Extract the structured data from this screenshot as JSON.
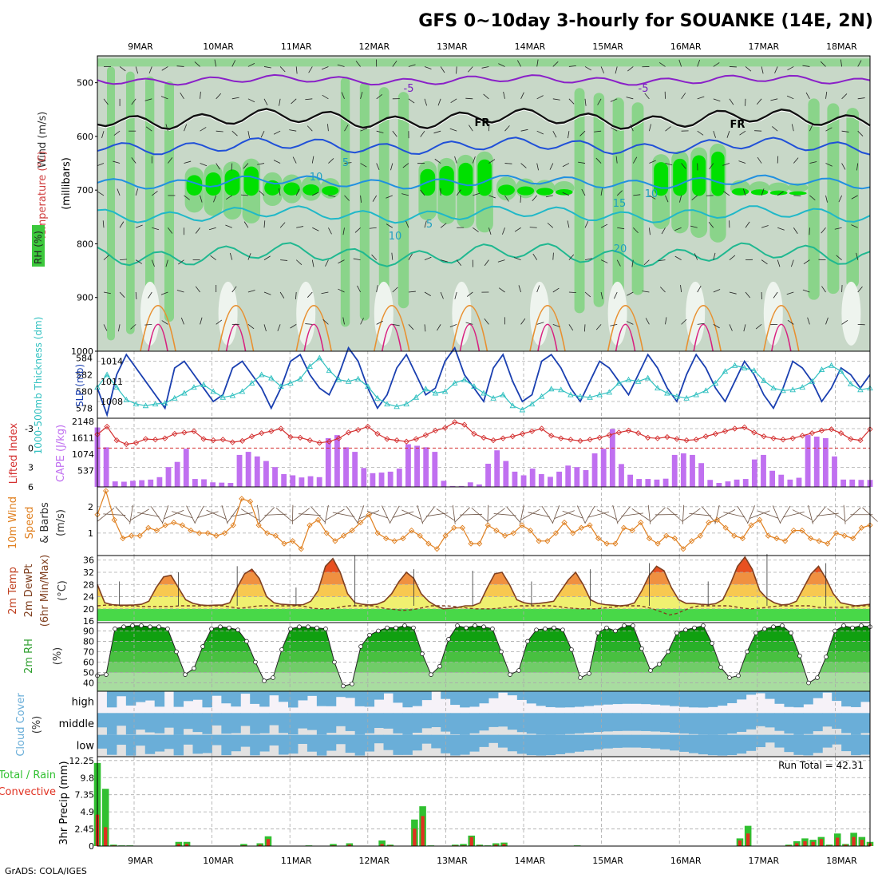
{
  "title": "GFS 0~10day 3-hourly for SOUANKE (14E, 2N)",
  "footer": "GrADS: COLA/IGES",
  "colors": {
    "grid": "#aaaaaa",
    "rh_light": "#c8d8c8",
    "rh_mid": "#7fd47f",
    "rh_high": "#3cc83c",
    "rh_sat": "#00e000",
    "slp": "#1a3fb0",
    "thickness": "#30c0c0",
    "lifted": "#d43030",
    "cape": "#c070f0",
    "wind10": "#e08020",
    "temp_outline": "#804020",
    "precip_total": "#30c030",
    "precip_conv": "#e03020",
    "cloud": "#6aaed8"
  },
  "chart_data": {
    "type": "meteogram",
    "x": {
      "labels": [
        "9MAR",
        "10MAR",
        "11MAR",
        "12MAR",
        "13MAR",
        "14MAR",
        "15MAR",
        "16MAR",
        "17MAR",
        "18MAR"
      ],
      "steps_per_day": 8,
      "n_steps": 81
    },
    "panels": [
      {
        "id": "upper_air",
        "legend": [
          "RH (%)",
          "Temperature (°C)",
          "Wind (m/s)"
        ],
        "ylabel": "(millibars)",
        "yticks": [
          "500",
          "600",
          "700",
          "800",
          "900",
          "1000"
        ],
        "ylim": [
          450,
          1000
        ],
        "contour_labels": [
          "-5",
          "-5",
          "FR",
          "FR",
          "5",
          "10",
          "15",
          "10",
          "5",
          "20",
          "10"
        ]
      },
      {
        "id": "slp_thickness",
        "left_label": "1000-500mb Thickness (dm)",
        "right_label": "SLP (mb)",
        "left_ticks": [
          "584",
          "582",
          "580",
          "578"
        ],
        "right_ticks": [
          "1014",
          "1011",
          "1008"
        ],
        "slp": [
          1010,
          1006,
          1012,
          1015,
          1013,
          1011,
          1009,
          1007,
          1013,
          1014,
          1012,
          1010,
          1008,
          1009,
          1013,
          1014,
          1012,
          1010,
          1007,
          1010,
          1014,
          1015,
          1012,
          1010,
          1009,
          1012,
          1016,
          1014,
          1010,
          1007,
          1009,
          1013,
          1015,
          1012,
          1009,
          1010,
          1014,
          1016,
          1012,
          1010,
          1008,
          1013,
          1015,
          1011,
          1008,
          1009,
          1014,
          1015,
          1013,
          1010,
          1008,
          1011,
          1014,
          1013,
          1011,
          1009,
          1012,
          1015,
          1013,
          1010,
          1008,
          1012,
          1015,
          1013,
          1010,
          1008,
          1011,
          1014,
          1012,
          1009,
          1007,
          1010,
          1014,
          1013,
          1011,
          1008,
          1010,
          1013,
          1012,
          1010,
          1012
        ],
        "thickness": [
          580.5,
          582,
          580.5,
          579,
          578.5,
          578.3,
          578.5,
          578.6,
          579.2,
          579.8,
          580.5,
          580.8,
          580,
          579.3,
          579.5,
          580,
          581,
          582,
          581.6,
          580.6,
          581,
          581.5,
          583,
          584,
          582.5,
          581.4,
          581.2,
          581.5,
          580.6,
          579.2,
          578.5,
          578.2,
          578.5,
          579.3,
          580.3,
          579.8,
          580,
          581,
          581.4,
          580.6,
          579.8,
          579.2,
          579.6,
          578.3,
          577.8,
          578.5,
          579.4,
          580.3,
          580.2,
          579.6,
          579.4,
          579.3,
          579.6,
          579.9,
          581,
          581.4,
          581.2,
          581.6,
          580.4,
          579.8,
          579.4,
          579.2,
          579.6,
          580.1,
          581,
          582.4,
          583.1,
          582.8,
          582.5,
          581.3,
          580.4,
          580.1,
          580.2,
          580.5,
          581.2,
          582.6,
          583.1,
          582.4,
          580.9,
          580.2,
          580.4
        ]
      },
      {
        "id": "lifted_cape",
        "left_label": "Lifted Index",
        "right_label": "CAPE (J/kg)",
        "left_ticks": [
          "-3",
          "0",
          "3",
          "6"
        ],
        "right_ticks": [
          "2148",
          "1611",
          "1074",
          "537"
        ],
        "lifted": [
          -2.1,
          -3.3,
          -1.2,
          -0.6,
          -0.8,
          -1.4,
          -1.3,
          -1.5,
          -2.2,
          -2.4,
          -2.6,
          -1.4,
          -1.2,
          -1.3,
          -0.9,
          -1.1,
          -1.8,
          -2.3,
          -2.6,
          -3.0,
          -1.7,
          -1.6,
          -1.2,
          -0.8,
          -1.0,
          -1.5,
          -2.4,
          -2.8,
          -3.3,
          -2.2,
          -1.4,
          -1.2,
          -1.0,
          -1.4,
          -2.0,
          -2.7,
          -3.1,
          -4.0,
          -3.6,
          -2.2,
          -1.6,
          -1.2,
          -1.5,
          -1.8,
          -2.2,
          -2.6,
          -3.0,
          -1.9,
          -1.5,
          -1.3,
          -1.1,
          -1.3,
          -1.6,
          -2.0,
          -2.4,
          -2.7,
          -2.3,
          -1.6,
          -1.5,
          -1.7,
          -1.4,
          -1.2,
          -1.3,
          -1.8,
          -2.2,
          -2.6,
          -3.0,
          -3.2,
          -2.4,
          -1.8,
          -1.5,
          -1.3,
          -1.5,
          -1.9,
          -2.3,
          -2.7,
          -2.9,
          -2.3,
          -1.4,
          -1.2,
          -2.9
        ],
        "cape": [
          1950,
          1300,
          180,
          170,
          200,
          220,
          240,
          320,
          650,
          820,
          1250,
          260,
          250,
          150,
          140,
          130,
          1050,
          1150,
          1000,
          850,
          650,
          420,
          380,
          310,
          350,
          320,
          1600,
          1700,
          1300,
          1150,
          620,
          450,
          470,
          500,
          600,
          1400,
          1350,
          1300,
          1150,
          200,
          30,
          30,
          150,
          80,
          760,
          1200,
          850,
          500,
          380,
          600,
          420,
          330,
          500,
          700,
          650,
          550,
          1100,
          1250,
          1900,
          750,
          400,
          260,
          260,
          240,
          270,
          1050,
          1100,
          1050,
          780,
          230,
          130,
          180,
          240,
          260,
          900,
          1050,
          530,
          400,
          240,
          300,
          1700,
          1650,
          1600,
          1000,
          240,
          240,
          230,
          230
        ]
      },
      {
        "id": "wind10",
        "label": "10m Wind Speed & Barbs (m/s)",
        "ticks": [
          "2",
          "1"
        ],
        "speed": [
          1.7,
          2.6,
          1.5,
          0.8,
          0.9,
          0.9,
          1.2,
          1.1,
          1.3,
          1.4,
          1.3,
          1.1,
          1.0,
          1.0,
          0.9,
          1.0,
          1.3,
          2.3,
          2.2,
          1.3,
          1.0,
          0.9,
          0.6,
          0.7,
          0.4,
          1.3,
          1.5,
          1.0,
          0.7,
          0.9,
          1.1,
          1.4,
          1.7,
          1.0,
          0.8,
          0.7,
          0.8,
          1.1,
          0.9,
          0.6,
          0.4,
          0.9,
          1.2,
          1.2,
          0.6,
          0.6,
          1.3,
          1.1,
          0.9,
          1.0,
          1.3,
          1.1,
          0.7,
          0.7,
          1.0,
          1.4,
          1.0,
          1.2,
          1.3,
          0.8,
          0.6,
          0.6,
          1.2,
          1.1,
          1.4,
          0.8,
          0.6,
          0.9,
          0.8,
          0.4,
          0.7,
          0.9,
          1.4,
          1.5,
          1.2,
          0.9,
          0.8,
          1.3,
          1.5,
          0.9,
          0.8,
          0.7,
          1.1,
          1.1,
          0.8,
          0.7,
          0.6,
          1.0,
          0.9,
          0.8,
          1.2,
          1.3
        ]
      },
      {
        "id": "temp2m",
        "label": "2m Temp 2m DewPt (6hr Min/Max) (°C)",
        "ticks": [
          "36",
          "32",
          "28",
          "24",
          "20",
          "16"
        ],
        "temp": [
          28,
          22,
          21.4,
          21.2,
          21.2,
          21.3,
          21.5,
          22.5,
          27,
          30.5,
          31,
          27,
          23,
          21.8,
          21.3,
          21.1,
          21.2,
          21.3,
          22,
          27,
          31.5,
          33,
          30,
          24,
          22,
          21.5,
          21.4,
          21.3,
          21.4,
          22.5,
          26,
          34,
          36.5,
          32,
          25,
          22,
          21.5,
          21.3,
          21.5,
          22.5,
          25,
          29,
          32,
          30,
          25,
          22.5,
          21,
          20,
          20.2,
          20.5,
          21,
          21,
          22,
          27,
          31.5,
          32,
          28,
          23,
          22,
          21.6,
          21.8,
          22.1,
          22.5,
          26,
          29.5,
          32,
          28,
          23,
          21.8,
          21.4,
          21.2,
          21.0,
          21.2,
          22,
          26,
          31,
          34,
          32.5,
          27,
          23,
          21.8,
          21.8,
          21.5,
          21.4,
          21.7,
          23,
          28,
          34,
          37,
          33,
          26,
          23.4,
          22,
          21.3,
          21.5,
          22.5,
          27,
          31.5,
          34,
          30,
          25,
          22,
          21.5,
          21,
          21.2,
          21.5
        ],
        "dew": [
          21,
          21.2,
          21.2,
          21,
          21,
          21,
          20.8,
          20.8,
          20.8,
          20.8,
          20.8,
          21,
          21,
          21,
          21,
          21,
          21,
          21,
          20.6,
          20.2,
          20.4,
          20.8,
          21,
          21,
          21,
          21,
          21,
          21,
          20.8,
          20.2,
          20,
          20,
          20.2,
          20.8,
          21,
          21,
          21,
          21,
          20.5,
          20,
          19.8,
          19.5,
          19.6,
          20,
          20.5,
          21,
          21,
          21,
          20.8,
          20.5,
          20.2,
          20,
          20,
          20,
          20.2,
          20.5,
          20.8,
          21,
          21,
          21,
          21,
          21,
          20.8,
          20.4,
          20.2,
          20,
          20,
          20,
          20.2,
          20.5,
          20.8,
          21,
          21,
          21,
          20.5,
          19.8,
          18.9,
          18,
          18.5,
          19.5,
          20.5,
          21,
          21,
          21,
          21,
          21,
          20.6,
          20.2,
          20,
          20.2,
          20.5,
          20.8,
          21,
          21,
          21,
          21,
          21,
          20.5,
          20.5,
          20.5,
          20.5,
          20.6,
          20.8,
          21,
          21
        ]
      },
      {
        "id": "rh2m",
        "label": "2m RH (%)",
        "ticks": [
          "90",
          "80",
          "70",
          "60",
          "50",
          "40"
        ],
        "rh": [
          47,
          48,
          92,
          94,
          95,
          95,
          94,
          94,
          92,
          70,
          48,
          54,
          75,
          92,
          94,
          93,
          91,
          80,
          60,
          42,
          45,
          72,
          92,
          94,
          94,
          93,
          92,
          60,
          37,
          39,
          75,
          86,
          90,
          93,
          93,
          95,
          93,
          68,
          48,
          56,
          82,
          95,
          93,
          95,
          94,
          92,
          70,
          48,
          52,
          80,
          91,
          92,
          93,
          91,
          72,
          45,
          49,
          88,
          93,
          90,
          95,
          95,
          73,
          52,
          58,
          70,
          88,
          91,
          93,
          95,
          78,
          55,
          45,
          47,
          70,
          88,
          92,
          94,
          95,
          88,
          66,
          40,
          45,
          65,
          90,
          95,
          93,
          95,
          94
        ]
      },
      {
        "id": "cloud",
        "label": "Cloud Cover (%)",
        "rows": [
          "high",
          "middle",
          "low"
        ]
      },
      {
        "id": "precip",
        "label": "3hr Precip (mm)",
        "legend": [
          "Total / Rain",
          "Convective"
        ],
        "ticks": [
          "12.25",
          "9.8",
          "7.35",
          "4.9",
          "2.45",
          "0"
        ],
        "run_total": "Run Total = 42.31",
        "total": [
          11.9,
          8.2,
          0.2,
          0.1,
          0.1,
          0,
          0,
          0,
          0,
          0,
          0.6,
          0.6,
          0,
          0,
          0,
          0,
          0,
          0,
          0.3,
          0,
          0.4,
          1.4,
          0,
          0,
          0,
          0,
          0.1,
          0,
          0,
          0.3,
          0,
          0.4,
          0,
          0,
          0,
          0.8,
          0.2,
          0,
          0,
          3.8,
          5.7,
          0.1,
          0,
          0,
          0.2,
          0.3,
          1.5,
          0.2,
          0.1,
          0.4,
          0.5,
          0,
          0,
          0,
          0,
          0,
          0,
          0,
          0,
          0.1,
          0,
          0,
          0,
          0,
          0,
          0,
          0,
          0,
          0,
          0,
          0,
          0,
          0,
          0,
          0,
          0,
          0,
          0,
          0,
          1.1,
          2.9,
          0,
          0,
          0,
          0,
          0.2,
          0.7,
          1.1,
          0.9,
          1.3,
          0.2,
          1.8,
          0.3,
          1.9,
          1.3,
          0.6
        ],
        "conv": [
          4.5,
          2.7,
          0.1,
          0,
          0,
          0,
          0,
          0,
          0,
          0,
          0.3,
          0.3,
          0,
          0,
          0,
          0,
          0,
          0,
          0.1,
          0,
          0.2,
          1.0,
          0,
          0,
          0,
          0,
          0,
          0,
          0,
          0.1,
          0,
          0.2,
          0,
          0,
          0,
          0.3,
          0.1,
          0,
          0,
          2.5,
          4.3,
          0,
          0,
          0,
          0.1,
          0.1,
          1.3,
          0.1,
          0,
          0.2,
          0.3,
          0,
          0,
          0,
          0,
          0,
          0,
          0,
          0,
          0,
          0,
          0,
          0,
          0,
          0,
          0,
          0,
          0,
          0,
          0,
          0,
          0,
          0,
          0,
          0,
          0,
          0,
          0,
          0,
          0.8,
          1.8,
          0,
          0,
          0,
          0,
          0.1,
          0.4,
          0.7,
          0.6,
          1.0,
          0.1,
          1.2,
          0.2,
          1.3,
          0.9,
          0.4
        ]
      }
    ]
  }
}
